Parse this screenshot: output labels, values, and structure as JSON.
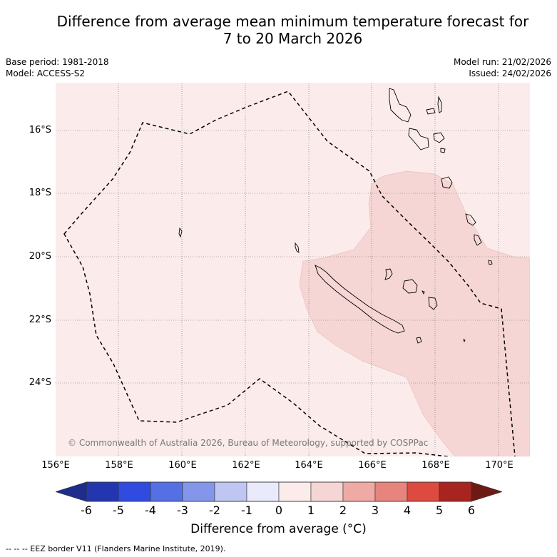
{
  "title": {
    "line1": "Difference from average mean minimum temperature forecast for",
    "line2": "7 to 20 March 2026"
  },
  "info": {
    "base_period": "Base period: 1981-2018",
    "model": "Model: ACCESS-S2",
    "model_run": "Model run: 21/02/2026",
    "issued": "Issued: 24/02/2026"
  },
  "map": {
    "lat_labels": [
      "16°S",
      "18°S",
      "20°S",
      "22°S",
      "24°S"
    ],
    "lon_labels": [
      "156°E",
      "158°E",
      "160°E",
      "162°E",
      "164°E",
      "166°E",
      "168°E",
      "170°E"
    ],
    "copyright": "© Commonwealth of Australia 2026, Bureau of Meteorology, supported by COSPPac",
    "colors": {
      "background_anomaly": "#fbeceb",
      "warm_anomaly": "#f5d6d5",
      "grid": "#666666",
      "land_outline": "#000000",
      "eez_border": "#000000"
    }
  },
  "colorbar": {
    "ticks": [
      "-6",
      "-5",
      "-4",
      "-3",
      "-2",
      "-1",
      "0",
      "1",
      "2",
      "3",
      "4",
      "5",
      "6"
    ],
    "colors": [
      "#1e2c8c",
      "#2336b0",
      "#2f4be0",
      "#5570e4",
      "#8496e9",
      "#c0c6f2",
      "#e9ebfa",
      "#fbeceb",
      "#f5d6d5",
      "#efaaa6",
      "#e6847d",
      "#dc4a40",
      "#a8241f",
      "#6e1a14"
    ],
    "title": "Difference from average (°C)"
  },
  "footer": {
    "legend": "--  --  -- EEZ border V11 (Flanders Marine Institute, 2019)."
  }
}
